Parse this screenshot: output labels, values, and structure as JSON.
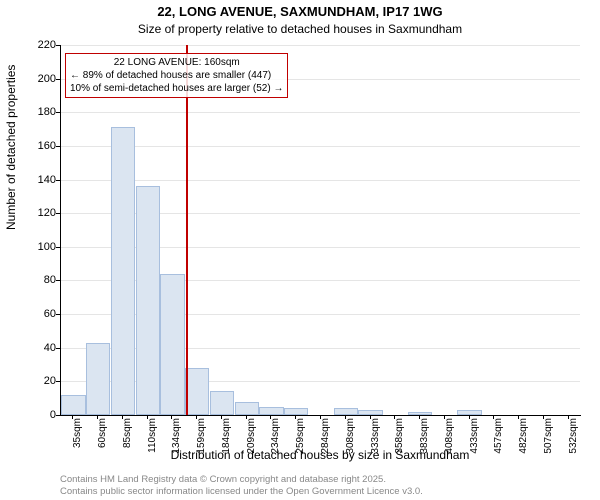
{
  "chart": {
    "type": "histogram",
    "title_main": "22, LONG AVENUE, SAXMUNDHAM, IP17 1WG",
    "title_sub": "Size of property relative to detached houses in Saxmundham",
    "title_main_fontsize": 13,
    "title_sub_fontsize": 12,
    "y_label": "Number of detached properties",
    "x_label": "Distribution of detached houses by size in Saxmundham",
    "label_fontsize": 12,
    "tick_fontsize": 11,
    "background_color": "#ffffff",
    "grid_color": "#e5e5e5",
    "axis_color": "#000000",
    "bar_fill": "#dbe5f1",
    "bar_stroke": "#a8bfde",
    "marker_color": "#c00000",
    "ylim": [
      0,
      220
    ],
    "ytick_step": 20,
    "categories": [
      "35sqm",
      "60sqm",
      "85sqm",
      "110sqm",
      "134sqm",
      "159sqm",
      "184sqm",
      "209sqm",
      "234sqm",
      "259sqm",
      "284sqm",
      "308sqm",
      "333sqm",
      "358sqm",
      "383sqm",
      "408sqm",
      "433sqm",
      "457sqm",
      "482sqm",
      "507sqm",
      "532sqm"
    ],
    "values": [
      12,
      43,
      171,
      136,
      84,
      28,
      14,
      8,
      5,
      4,
      0,
      4,
      3,
      0,
      2,
      0,
      3,
      0,
      0,
      0,
      0
    ],
    "marker_value": 160,
    "marker_category_index": 5,
    "annotation": {
      "line1": "22 LONG AVENUE: 160sqm",
      "line2": "← 89% of detached houses are smaller (447)",
      "line3": "10% of semi-detached houses are larger (52) →",
      "border_color": "#c00000",
      "fontsize": 10
    },
    "footer": {
      "line1": "Contains HM Land Registry data © Crown copyright and database right 2025.",
      "line2": "Contains public sector information licensed under the Open Government Licence v3.0.",
      "color": "#888888",
      "fontsize": 9.5
    }
  }
}
